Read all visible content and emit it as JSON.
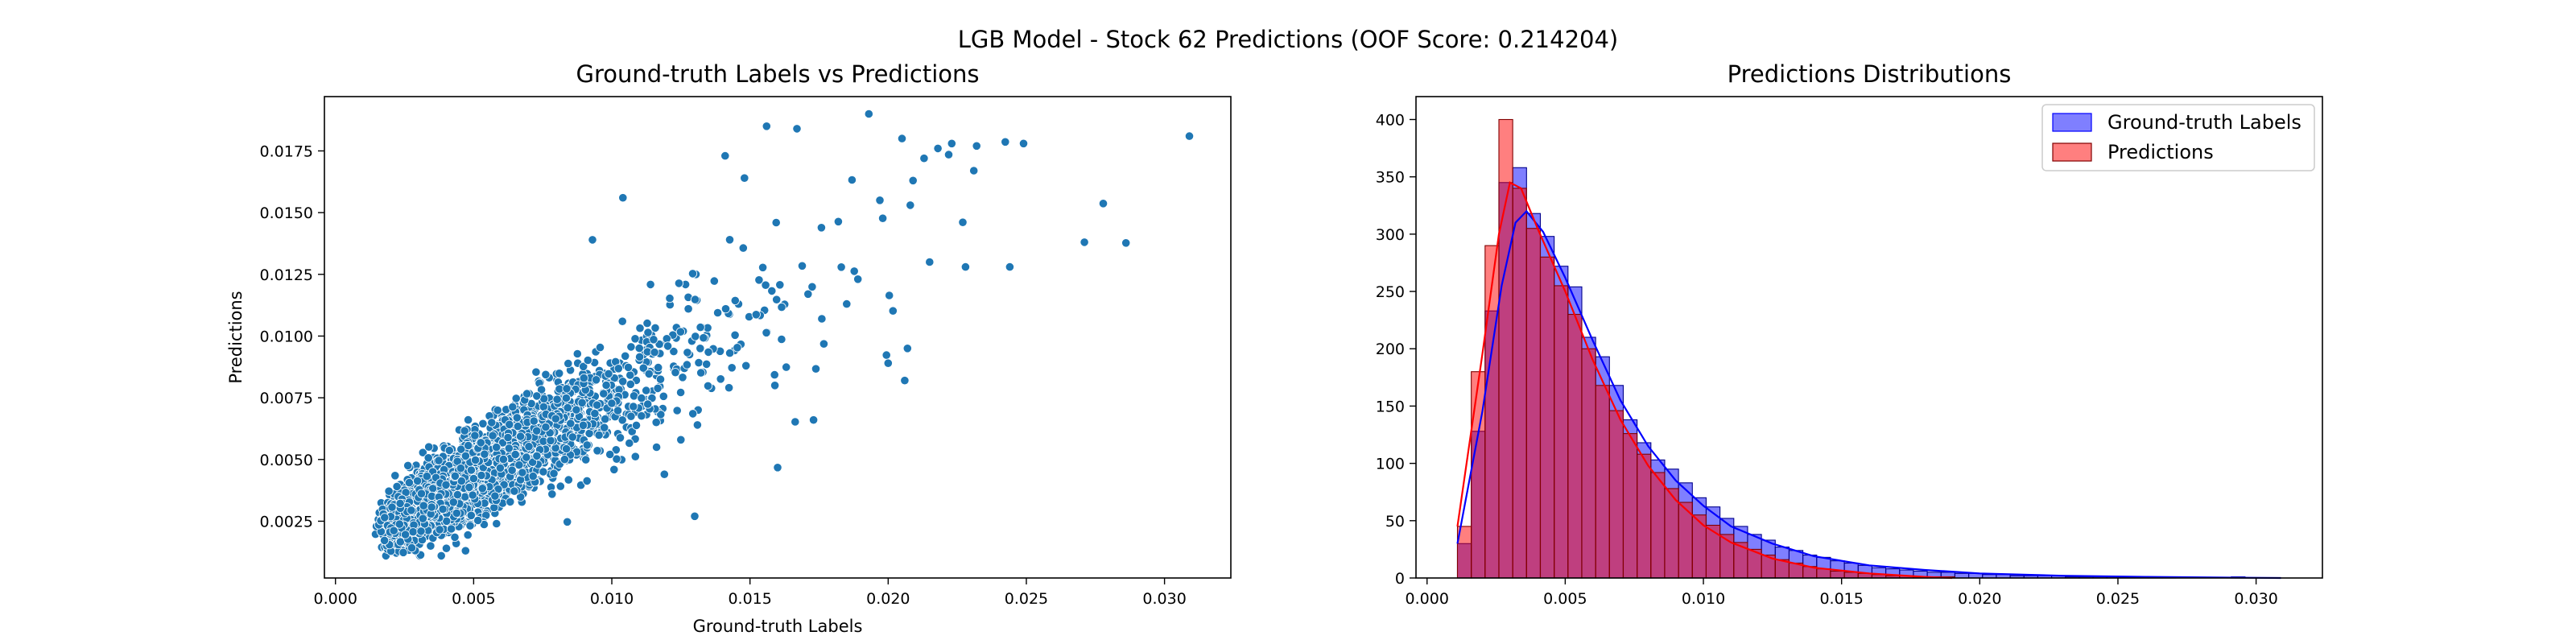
{
  "figure": {
    "title": "LGB Model - Stock 62 Predictions (OOF Score: 0.214204)"
  },
  "chart_data": [
    {
      "type": "scatter",
      "title": "Ground-truth Labels vs Predictions",
      "xlabel": "Ground-truth Labels",
      "ylabel": "Predictions",
      "xlim": [
        -0.0004,
        0.0324
      ],
      "ylim": [
        0.0002,
        0.0197
      ],
      "xticks": [
        "0.000",
        "0.005",
        "0.010",
        "0.015",
        "0.020",
        "0.025",
        "0.030"
      ],
      "yticks": [
        "0.0025",
        "0.0050",
        "0.0075",
        "0.0100",
        "0.0125",
        "0.0150",
        "0.0175"
      ],
      "grid": false,
      "color": "#1f77b4",
      "point_count": 3830,
      "notable_points": [
        {
          "x": 0.0309,
          "y": 0.0181
        },
        {
          "x": 0.0271,
          "y": 0.0138
        },
        {
          "x": 0.0249,
          "y": 0.0178
        },
        {
          "x": 0.0244,
          "y": 0.0128
        },
        {
          "x": 0.0232,
          "y": 0.0177
        },
        {
          "x": 0.0231,
          "y": 0.0167
        },
        {
          "x": 0.0223,
          "y": 0.0178
        },
        {
          "x": 0.0228,
          "y": 0.0128
        },
        {
          "x": 0.0218,
          "y": 0.0176
        },
        {
          "x": 0.0215,
          "y": 0.013
        },
        {
          "x": 0.0213,
          "y": 0.0172
        },
        {
          "x": 0.0209,
          "y": 0.0163
        },
        {
          "x": 0.0207,
          "y": 0.0095
        },
        {
          "x": 0.0206,
          "y": 0.0082
        },
        {
          "x": 0.0205,
          "y": 0.018
        },
        {
          "x": 0.0208,
          "y": 0.0153
        },
        {
          "x": 0.0193,
          "y": 0.019
        },
        {
          "x": 0.0197,
          "y": 0.0155
        },
        {
          "x": 0.02,
          "y": 0.0089
        },
        {
          "x": 0.0185,
          "y": 0.0113
        },
        {
          "x": 0.0176,
          "y": 0.0107
        },
        {
          "x": 0.0173,
          "y": 0.0066
        },
        {
          "x": 0.0156,
          "y": 0.0185
        },
        {
          "x": 0.0167,
          "y": 0.0184
        },
        {
          "x": 0.0171,
          "y": 0.0117
        },
        {
          "x": 0.0159,
          "y": 0.008
        },
        {
          "x": 0.0141,
          "y": 0.0173
        },
        {
          "x": 0.0148,
          "y": 0.0164
        },
        {
          "x": 0.013,
          "y": 0.0027
        },
        {
          "x": 0.0131,
          "y": 0.0064
        },
        {
          "x": 0.0125,
          "y": 0.0058
        },
        {
          "x": 0.0119,
          "y": 0.0044
        },
        {
          "x": 0.0104,
          "y": 0.0156
        },
        {
          "x": 0.0093,
          "y": 0.0139
        }
      ]
    },
    {
      "type": "histogram",
      "title": "Predictions Distributions",
      "xlim": [
        -0.0004,
        0.0324
      ],
      "ylim": [
        0,
        420
      ],
      "xticks": [
        "0.000",
        "0.005",
        "0.010",
        "0.015",
        "0.020",
        "0.025",
        "0.030"
      ],
      "yticks": [
        "0",
        "50",
        "100",
        "150",
        "200",
        "250",
        "300",
        "350",
        "400"
      ],
      "grid": false,
      "legend_position": "top-right",
      "bin_width": 0.0005,
      "series": [
        {
          "name": "Ground-truth Labels",
          "color": "#0000ff",
          "bin_start": 0.0011,
          "values": [
            30,
            128,
            233,
            345,
            358,
            318,
            298,
            272,
            254,
            210,
            193,
            168,
            138,
            118,
            103,
            95,
            83,
            70,
            62,
            52,
            45,
            38,
            33,
            27,
            24,
            20,
            18,
            15,
            13,
            11,
            9,
            8,
            7,
            6,
            5,
            5,
            4,
            4,
            3,
            3,
            2,
            2,
            2,
            2,
            1,
            1,
            1,
            1,
            1,
            1,
            1,
            1,
            0,
            0,
            0,
            0,
            1,
            0,
            0
          ],
          "kde": [
            {
              "x": 0.0011,
              "y": 30
            },
            {
              "x": 0.002,
              "y": 145
            },
            {
              "x": 0.0027,
              "y": 255
            },
            {
              "x": 0.0032,
              "y": 310
            },
            {
              "x": 0.0036,
              "y": 320
            },
            {
              "x": 0.0042,
              "y": 302
            },
            {
              "x": 0.005,
              "y": 262
            },
            {
              "x": 0.006,
              "y": 207
            },
            {
              "x": 0.007,
              "y": 155
            },
            {
              "x": 0.008,
              "y": 115
            },
            {
              "x": 0.009,
              "y": 85
            },
            {
              "x": 0.01,
              "y": 63
            },
            {
              "x": 0.011,
              "y": 45
            },
            {
              "x": 0.0125,
              "y": 30
            },
            {
              "x": 0.014,
              "y": 19
            },
            {
              "x": 0.016,
              "y": 11
            },
            {
              "x": 0.018,
              "y": 7
            },
            {
              "x": 0.02,
              "y": 4
            },
            {
              "x": 0.023,
              "y": 2
            },
            {
              "x": 0.026,
              "y": 1
            },
            {
              "x": 0.0309,
              "y": 0
            }
          ]
        },
        {
          "name": "Predictions",
          "color": "#ff0000",
          "bin_start": 0.0011,
          "values": [
            45,
            180,
            290,
            400,
            340,
            305,
            280,
            255,
            230,
            200,
            168,
            146,
            126,
            108,
            92,
            78,
            66,
            55,
            46,
            38,
            31,
            25,
            20,
            16,
            13,
            10,
            8,
            6,
            5,
            4,
            3,
            2,
            2,
            1,
            1,
            1
          ],
          "kde": [
            {
              "x": 0.0011,
              "y": 45
            },
            {
              "x": 0.002,
              "y": 195
            },
            {
              "x": 0.0026,
              "y": 300
            },
            {
              "x": 0.003,
              "y": 345
            },
            {
              "x": 0.0034,
              "y": 340
            },
            {
              "x": 0.004,
              "y": 305
            },
            {
              "x": 0.005,
              "y": 250
            },
            {
              "x": 0.006,
              "y": 190
            },
            {
              "x": 0.007,
              "y": 138
            },
            {
              "x": 0.008,
              "y": 98
            },
            {
              "x": 0.009,
              "y": 68
            },
            {
              "x": 0.01,
              "y": 46
            },
            {
              "x": 0.011,
              "y": 31
            },
            {
              "x": 0.0125,
              "y": 17
            },
            {
              "x": 0.014,
              "y": 9
            },
            {
              "x": 0.016,
              "y": 4
            },
            {
              "x": 0.018,
              "y": 1
            },
            {
              "x": 0.019,
              "y": 0
            }
          ]
        }
      ]
    }
  ]
}
